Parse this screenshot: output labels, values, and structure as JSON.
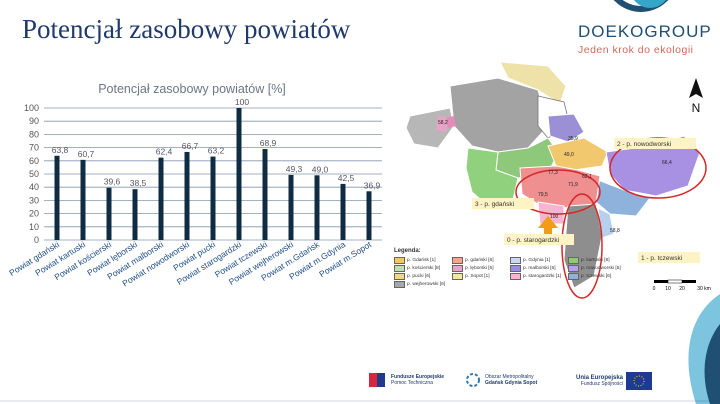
{
  "slide": {
    "title": "Potencjał zasobowy powiatów"
  },
  "logo": {
    "name": "DOEKOGROUP",
    "tagline": "Jeden krok do ekologii"
  },
  "north_label": "N",
  "chart_data": {
    "type": "bar",
    "title": "Potencjał zasobowy powiatów [%]",
    "categories": [
      "Powiat gdański",
      "Powiat kartuski",
      "Powiat kościerski",
      "Powiat lęborski",
      "Powiat malborski",
      "Powiat nowodworski",
      "Powiat pucki",
      "Powiat starogardzki",
      "Powiat tczewski",
      "Powiat wejherowski",
      "Powiat m.Gdańsk",
      "Powiat m.Gdynia",
      "Powiat m.Sopot"
    ],
    "values": [
      63.8,
      60.7,
      39.6,
      38.5,
      62.4,
      66.7,
      63.2,
      100,
      68.9,
      49.3,
      49.0,
      42.5,
      36.9
    ],
    "labels": [
      "63,8",
      "60,7",
      "39,6",
      "38,5",
      "62,4",
      "66,7",
      "63,2",
      "100",
      "68,9",
      "49,3",
      "49,0",
      "42,5",
      "36,9"
    ],
    "ylim": [
      0,
      100
    ],
    "yticks": [
      0,
      10,
      20,
      30,
      40,
      50,
      60,
      70,
      80,
      90,
      100
    ],
    "grid": true,
    "bar_color": "#0f2c42",
    "grid_color": "#8497b0"
  },
  "map": {
    "region_labels": [
      "2 - p. nowodworski",
      "3 - p. gdański",
      "0 - p. starogardzki",
      "1 - p. tczewski"
    ],
    "region_values": [
      "100",
      "58,2",
      "35,9",
      "49,0",
      "66,4",
      "62,1",
      "71,9",
      "77,3",
      "79,5",
      "58,8"
    ],
    "legend_title": "Legenda:",
    "legend": [
      {
        "label": "p. Gdańsk [1]",
        "color": "#f6c46d"
      },
      {
        "label": "p. gdański [8]",
        "color": "#f4a58a"
      },
      {
        "label": "p. Gdynia [1]",
        "color": "#c9d8f2"
      },
      {
        "label": "p. kartuski [8]",
        "color": "#8ec87a"
      },
      {
        "label": "p. kościerski [8]",
        "color": "#bfe0ad"
      },
      {
        "label": "p. lęborski [5]",
        "color": "#e8a4c8"
      },
      {
        "label": "p. malborski [6]",
        "color": "#9b8fd6"
      },
      {
        "label": "p. nowodworski [5]",
        "color": "#b6a3e6"
      },
      {
        "label": "p. pucki [6]",
        "color": "#f2d48c"
      },
      {
        "label": "p. Sopot [1]",
        "color": "#f6e3a6"
      },
      {
        "label": "p. starogardzki [1]",
        "color": "#f3b5cf"
      },
      {
        "label": "p. tczewski [6]",
        "color": "#8fb2dd"
      },
      {
        "label": "p. wejherowski [6]",
        "color": "#a7a7a7"
      }
    ],
    "scale_labels": [
      "0",
      "10",
      "20",
      "30 km"
    ]
  },
  "footer": {
    "fe_name": "Fundusze Europejskie",
    "fe_sub": "Pomoc Techniczna",
    "oom_name": "Obszar Metropolitalny",
    "oom_sub": "Gdańsk Gdynia Sopot",
    "eu_name": "Unia Europejska",
    "eu_sub": "Fundusz Spójności"
  }
}
